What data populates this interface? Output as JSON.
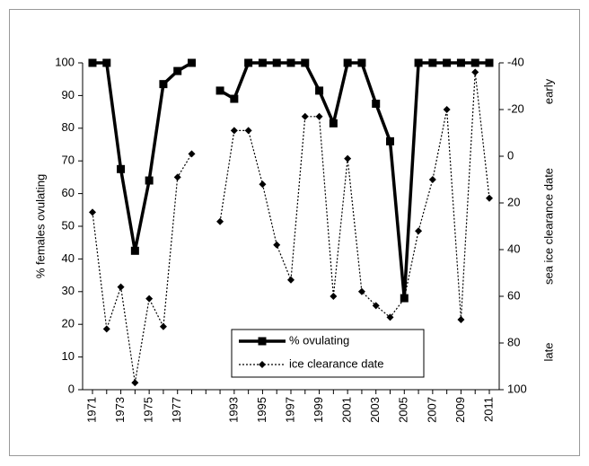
{
  "chart_data": {
    "type": "line",
    "categories": [
      "1971",
      null,
      "1973",
      null,
      "1975",
      null,
      "1977",
      null,
      null,
      null,
      "1993",
      null,
      "1995",
      null,
      "1997",
      null,
      "1999",
      null,
      "2001",
      null,
      "2003",
      null,
      "2005",
      null,
      "2007",
      null,
      "2009",
      null,
      "2011"
    ],
    "series": [
      {
        "name": "% ovulating",
        "color": "#000000",
        "marker": "square",
        "dash": "solid",
        "values": [
          100,
          100,
          67.5,
          42.5,
          64,
          93.5,
          97.5,
          100,
          null,
          91.5,
          89,
          100,
          100,
          100,
          100,
          100,
          91.5,
          81.5,
          100,
          100,
          87.5,
          76,
          28,
          100,
          100,
          100,
          100,
          100,
          100
        ]
      },
      {
        "name": "ice clearance date",
        "color": "#000000",
        "marker": "diamond",
        "dash": "dotted",
        "axis": "y2",
        "values": [
          24,
          74,
          56,
          97,
          61,
          73,
          9,
          -1,
          null,
          28,
          -11,
          -11,
          12,
          38,
          53,
          -17,
          -17,
          60,
          1,
          58,
          64,
          69,
          61,
          32,
          10,
          -20,
          70,
          -36,
          18
        ]
      }
    ],
    "ylabel": "% females ovulating",
    "y2label": "sea ice clearance date",
    "y2_annotations": {
      "top": "early",
      "bottom": "late"
    },
    "ylim": [
      0,
      100
    ],
    "yticks": [
      0,
      10,
      20,
      30,
      40,
      50,
      60,
      70,
      80,
      90,
      100
    ],
    "y2lim": [
      100,
      -40
    ],
    "y2ticks": [
      -40,
      -20,
      0,
      20,
      40,
      60,
      80,
      100
    ],
    "legend": "lower center"
  }
}
